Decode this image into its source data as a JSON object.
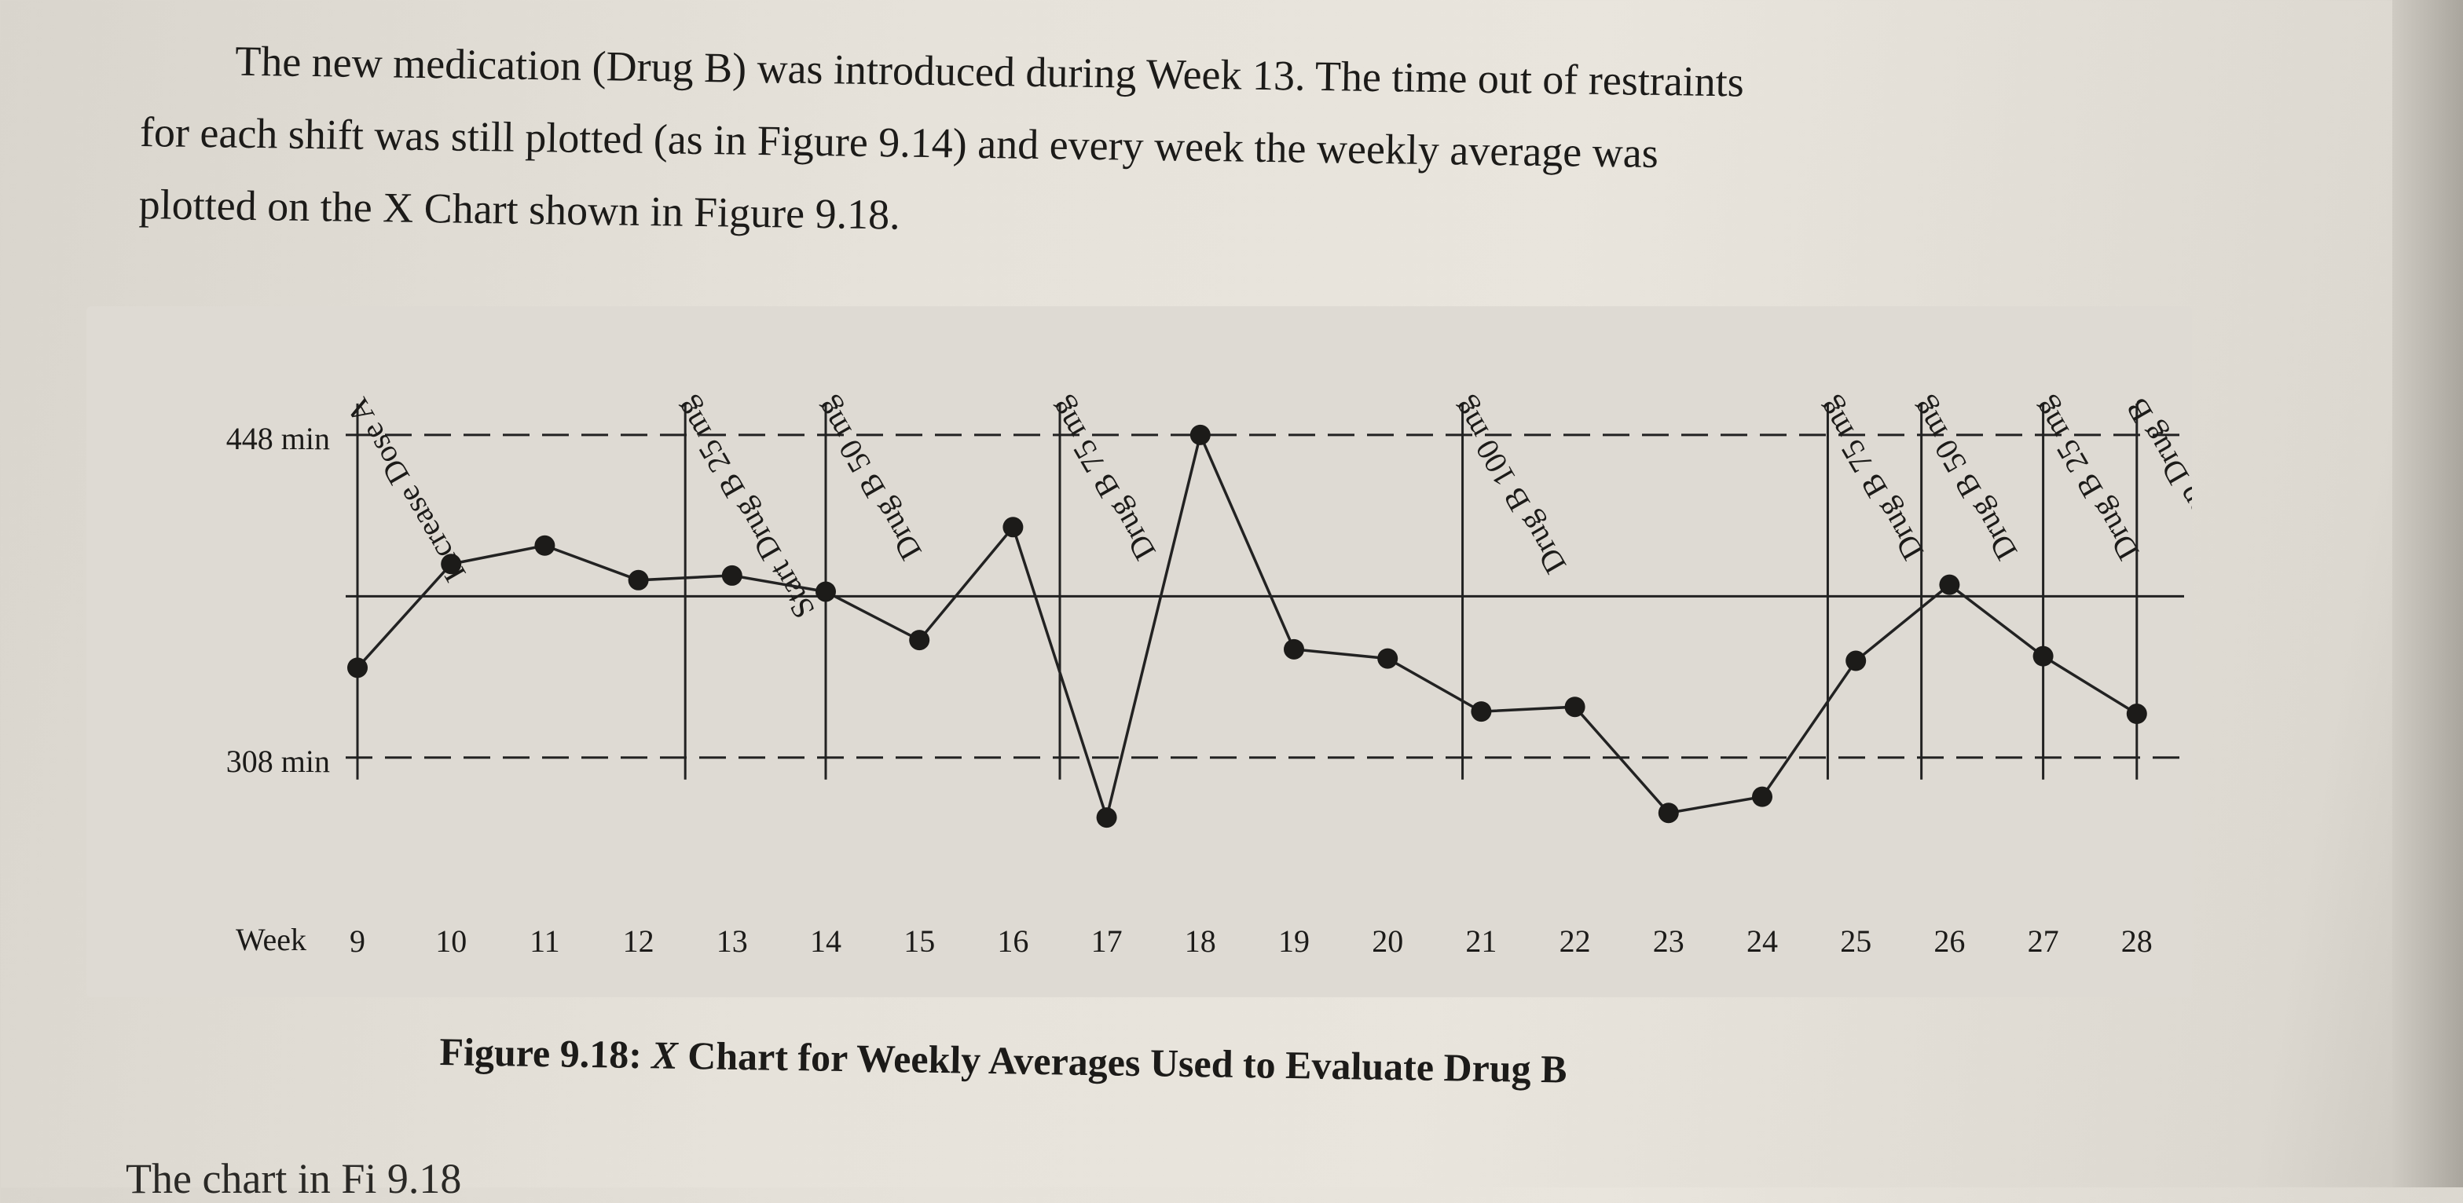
{
  "text": {
    "intro_line1": "The new medication (Drug B) was introduced during Week 13.  The time out of restraints",
    "intro_line2": "for each shift was still plotted (as in Figure 9.14) and every week the weekly average was",
    "intro_line3": "plotted on the X Chart shown in Figure 9.18.",
    "caption_fig": "Figure 9.18:",
    "caption_x": "X",
    "caption_rest": "Chart for Weekly Averages Used to Evaluate Drug B",
    "bottom_partial": "The chart in Fi      9.18"
  },
  "chart_data": {
    "type": "line",
    "title": "",
    "xlabel": "Week",
    "ylabel": "",
    "x": [
      9,
      10,
      11,
      12,
      13,
      14,
      15,
      16,
      17,
      18,
      19,
      20,
      21,
      22,
      23,
      24,
      25,
      26,
      27,
      28
    ],
    "values": [
      347,
      392,
      400,
      385,
      387,
      380,
      359,
      408,
      282,
      448,
      355,
      351,
      328,
      330,
      284,
      291,
      350,
      383,
      352,
      327
    ],
    "ylim": [
      250,
      480
    ],
    "limits": {
      "upper": {
        "label": "448 min",
        "value": 448
      },
      "lower": {
        "label": "308 min",
        "value": 308
      },
      "center": 378
    },
    "annotations": [
      {
        "week": 9,
        "text": "Increase Dose A"
      },
      {
        "week": 12.5,
        "text": "Start Drug B 25 mg"
      },
      {
        "week": 14,
        "text": "Drug B 50 mg"
      },
      {
        "week": 16.5,
        "text": "Drug B 75 mg"
      },
      {
        "week": 20.8,
        "text": "Drug B 100 mg"
      },
      {
        "week": 24.7,
        "text": "Drug B 75 mg"
      },
      {
        "week": 25.7,
        "text": "Drug B 50 mg"
      },
      {
        "week": 27,
        "text": "Drug B 25 mg"
      },
      {
        "week": 28,
        "text": "Stop Drug B"
      }
    ],
    "grid": false
  }
}
